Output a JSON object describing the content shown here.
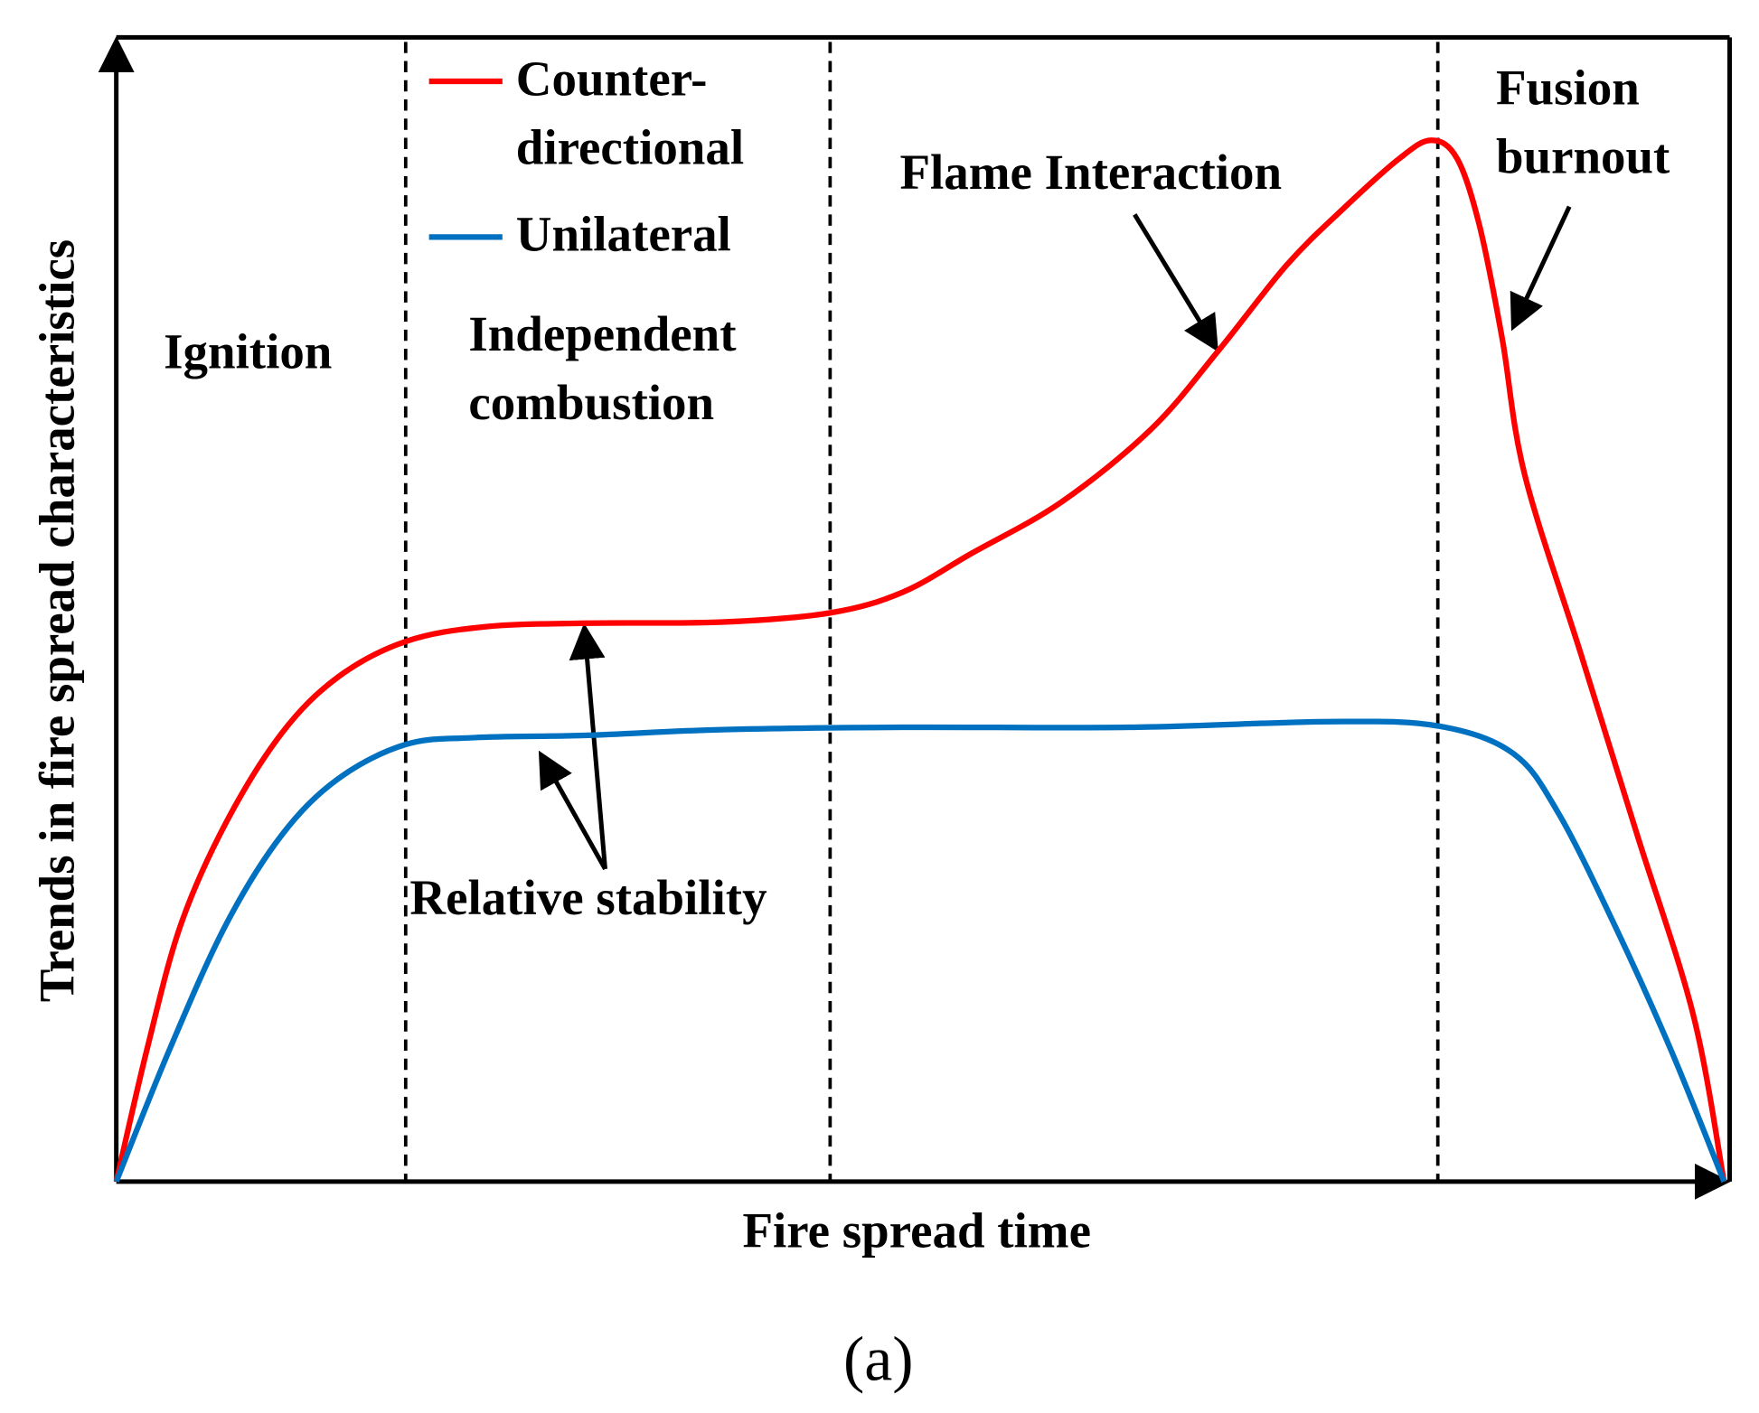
{
  "chart_data": {
    "type": "line",
    "caption": "(a)",
    "x_label": "Fire spread time",
    "y_label": "Trends in fire spread characteristics",
    "xlim": [
      0,
      100
    ],
    "ylim": [
      0,
      100
    ],
    "phase_boundaries": [
      18.0,
      44.4,
      82.2
    ],
    "series": [
      {
        "name": "Counter-\ndirectional",
        "color": "#ff0000",
        "x": [
          0,
          1.9,
          4.0,
          6.8,
          10.3,
          13.8,
          18.0,
          23.0,
          29.3,
          37.7,
          44.4,
          48.9,
          53.2,
          58.8,
          64.4,
          68.6,
          72.8,
          76.3,
          79.8,
          81.8,
          83.4,
          84.8,
          86.2,
          87.6,
          91.1,
          94.6,
          98.1,
          100
        ],
        "values": [
          0,
          11.5,
          22.4,
          31.3,
          39.2,
          44.1,
          47.2,
          48.5,
          48.8,
          48.9,
          49.7,
          51.5,
          54.9,
          59.4,
          65.8,
          72.7,
          80.1,
          85.0,
          89.4,
          91.0,
          89.4,
          83.5,
          73.7,
          61.8,
          46.1,
          30.3,
          14.5,
          0
        ]
      },
      {
        "name": "Unilateral",
        "color": "#0070c0",
        "x": [
          0,
          3.3,
          6.8,
          10.3,
          13.8,
          18.0,
          22.3,
          29.3,
          37.7,
          48.9,
          63.0,
          75.6,
          82.3,
          86.9,
          89.7,
          93.2,
          96.7,
          100
        ],
        "values": [
          0,
          11.5,
          22.4,
          30.3,
          35.2,
          38.2,
          38.8,
          39.0,
          39.5,
          39.7,
          39.7,
          40.2,
          39.8,
          37.4,
          32.2,
          22.4,
          11.5,
          0
        ]
      }
    ],
    "annotations": [
      "Ignition",
      "Independent\ncombustion",
      "Flame Interaction",
      "Fusion\nburnout",
      "Relative stability"
    ]
  }
}
